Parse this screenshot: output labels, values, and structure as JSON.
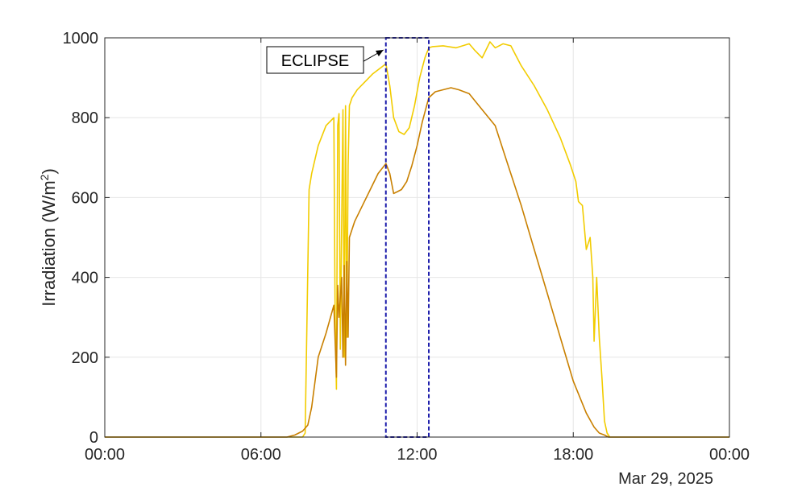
{
  "chart_data": {
    "type": "line",
    "ylabel": {
      "main": "Irradiation (W/m",
      "sup": "2",
      "close": ")"
    },
    "xlim_hours": [
      0,
      24
    ],
    "ylim": [
      0,
      1000
    ],
    "x_tick_labels": [
      "00:00",
      "06:00",
      "12:00",
      "18:00",
      "00:00"
    ],
    "y_tick_labels": [
      "0",
      "200",
      "400",
      "600",
      "800",
      "1000"
    ],
    "date_label": "Mar 29, 2025",
    "grid": true,
    "annotation": {
      "text": "ECLIPSE",
      "box_start_hours": 10.8,
      "box_end_hours": 12.45,
      "box_color": "#1a1aaa"
    },
    "series": [
      {
        "color": "#f2cc00",
        "x_hours": [
          0,
          7.6,
          7.7,
          7.85,
          7.95,
          8.2,
          8.5,
          8.8,
          8.85,
          8.9,
          8.95,
          9.0,
          9.05,
          9.15,
          9.2,
          9.25,
          9.3,
          9.35,
          9.4,
          9.5,
          9.7,
          10.0,
          10.3,
          10.6,
          10.8,
          10.95,
          11.1,
          11.3,
          11.5,
          11.7,
          11.9,
          12.1,
          12.3,
          12.45,
          12.6,
          13.0,
          13.5,
          14.0,
          14.2,
          14.5,
          14.8,
          15.0,
          15.3,
          15.6,
          16.0,
          16.5,
          17.0,
          17.5,
          17.9,
          18.1,
          18.2,
          18.35,
          18.5,
          18.65,
          18.75,
          18.8,
          18.9,
          19.0,
          19.1,
          19.2,
          19.3,
          19.4,
          19.6,
          24
        ],
        "values": [
          0,
          0,
          10,
          620,
          660,
          730,
          780,
          800,
          300,
          120,
          780,
          810,
          220,
          820,
          200,
          830,
          250,
          680,
          830,
          850,
          870,
          890,
          910,
          925,
          935,
          880,
          800,
          765,
          758,
          775,
          830,
          900,
          950,
          975,
          978,
          980,
          975,
          985,
          970,
          950,
          990,
          975,
          985,
          980,
          930,
          880,
          820,
          750,
          680,
          640,
          590,
          580,
          470,
          500,
          400,
          240,
          400,
          250,
          150,
          40,
          10,
          0,
          0,
          0
        ]
      },
      {
        "color": "#c98000",
        "x_hours": [
          0,
          7.0,
          7.3,
          7.6,
          7.8,
          7.95,
          8.0,
          8.2,
          8.5,
          8.8,
          8.9,
          8.95,
          9.0,
          9.1,
          9.15,
          9.2,
          9.25,
          9.3,
          9.35,
          9.4,
          9.6,
          9.9,
          10.2,
          10.5,
          10.8,
          10.95,
          11.1,
          11.25,
          11.4,
          11.6,
          11.8,
          12.0,
          12.2,
          12.45,
          12.7,
          13.0,
          13.3,
          13.6,
          14.0,
          14.5,
          15.0,
          15.5,
          16.0,
          16.5,
          17.0,
          17.5,
          18.0,
          18.5,
          18.8,
          19.0,
          19.2,
          19.35,
          19.5,
          24
        ],
        "values": [
          0,
          0,
          5,
          15,
          30,
          75,
          100,
          200,
          260,
          330,
          150,
          380,
          300,
          400,
          200,
          430,
          180,
          440,
          250,
          500,
          540,
          580,
          620,
          660,
          685,
          660,
          610,
          615,
          620,
          640,
          680,
          730,
          790,
          850,
          865,
          870,
          875,
          870,
          860,
          820,
          780,
          680,
          580,
          470,
          360,
          250,
          140,
          60,
          25,
          10,
          5,
          0,
          0,
          0
        ]
      }
    ]
  }
}
